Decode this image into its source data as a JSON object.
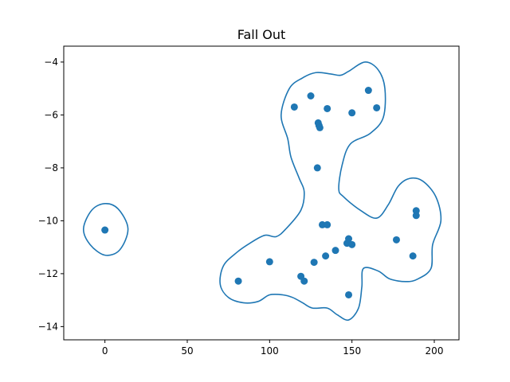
{
  "chart_data": {
    "type": "scatter",
    "title": "Fall Out",
    "xlabel": "",
    "ylabel": "",
    "xlim": [
      -25,
      215
    ],
    "ylim": [
      -14.5,
      -3.4
    ],
    "x_ticks": [
      0,
      50,
      100,
      150,
      200
    ],
    "y_ticks": [
      -4,
      -6,
      -8,
      -10,
      -12,
      -14
    ],
    "x_tick_labels": [
      "0",
      "50",
      "100",
      "150",
      "200"
    ],
    "y_tick_labels": [
      "−4",
      "−6",
      "−8",
      "−10",
      "−12",
      "−14"
    ],
    "grid": false,
    "point_color": "#1f77b4",
    "line_color": "#1f77b4",
    "points": [
      {
        "x": 0,
        "y": -10.35
      },
      {
        "x": 81,
        "y": -12.28
      },
      {
        "x": 100,
        "y": -11.55
      },
      {
        "x": 115,
        "y": -5.7
      },
      {
        "x": 119,
        "y": -12.1
      },
      {
        "x": 121,
        "y": -12.28
      },
      {
        "x": 125,
        "y": -5.28
      },
      {
        "x": 127,
        "y": -11.57
      },
      {
        "x": 129,
        "y": -8.0
      },
      {
        "x": 129.5,
        "y": -6.3
      },
      {
        "x": 130,
        "y": -6.4
      },
      {
        "x": 130.5,
        "y": -6.48
      },
      {
        "x": 132,
        "y": -10.15
      },
      {
        "x": 134,
        "y": -11.33
      },
      {
        "x": 135,
        "y": -10.15
      },
      {
        "x": 135,
        "y": -5.76
      },
      {
        "x": 140,
        "y": -11.12
      },
      {
        "x": 147,
        "y": -10.85
      },
      {
        "x": 148,
        "y": -10.68
      },
      {
        "x": 148,
        "y": -12.8
      },
      {
        "x": 150,
        "y": -10.9
      },
      {
        "x": 150,
        "y": -5.92
      },
      {
        "x": 160,
        "y": -5.07
      },
      {
        "x": 165,
        "y": -5.73
      },
      {
        "x": 177,
        "y": -10.72
      },
      {
        "x": 187,
        "y": -11.33
      },
      {
        "x": 189,
        "y": -9.62
      },
      {
        "x": 189,
        "y": -9.8
      }
    ],
    "contours": [
      [
        [
          0,
          -9.35
        ],
        [
          8,
          -9.55
        ],
        [
          14,
          -10.3
        ],
        [
          9,
          -11.1
        ],
        [
          0,
          -11.3
        ],
        [
          -9,
          -10.9
        ],
        [
          -13,
          -10.3
        ],
        [
          -8,
          -9.6
        ]
      ],
      [
        [
          112,
          -5.0
        ],
        [
          120,
          -4.6
        ],
        [
          128,
          -4.4
        ],
        [
          137,
          -4.45
        ],
        [
          143,
          -4.5
        ],
        [
          148,
          -4.35
        ],
        [
          158,
          -4.0
        ],
        [
          166,
          -4.3
        ],
        [
          170,
          -5.0
        ],
        [
          169,
          -6.1
        ],
        [
          161,
          -6.7
        ],
        [
          149,
          -7.1
        ],
        [
          144,
          -7.9
        ],
        [
          142,
          -8.8
        ],
        [
          145,
          -9.1
        ],
        [
          155,
          -9.6
        ],
        [
          165,
          -9.9
        ],
        [
          172,
          -9.4
        ],
        [
          178,
          -8.7
        ],
        [
          185,
          -8.4
        ],
        [
          193,
          -8.5
        ],
        [
          201,
          -9.1
        ],
        [
          204,
          -10.0
        ],
        [
          199,
          -10.9
        ],
        [
          198,
          -11.8
        ],
        [
          190,
          -12.2
        ],
        [
          183,
          -12.3
        ],
        [
          173,
          -12.2
        ],
        [
          166,
          -11.9
        ],
        [
          157,
          -11.8
        ],
        [
          156,
          -12.5
        ],
        [
          154,
          -13.3
        ],
        [
          148,
          -13.75
        ],
        [
          141,
          -13.55
        ],
        [
          135,
          -13.3
        ],
        [
          126,
          -13.3
        ],
        [
          120,
          -13.1
        ],
        [
          114,
          -12.9
        ],
        [
          108,
          -12.8
        ],
        [
          100,
          -12.8
        ],
        [
          93,
          -13.05
        ],
        [
          84,
          -13.1
        ],
        [
          75,
          -12.9
        ],
        [
          70,
          -12.4
        ],
        [
          72,
          -11.7
        ],
        [
          80,
          -11.2
        ],
        [
          88,
          -10.85
        ],
        [
          97,
          -10.55
        ],
        [
          104,
          -10.6
        ],
        [
          110,
          -10.3
        ],
        [
          119,
          -9.6
        ],
        [
          121,
          -8.9
        ],
        [
          118,
          -8.4
        ],
        [
          113,
          -7.6
        ],
        [
          111,
          -6.9
        ],
        [
          107,
          -6.0
        ]
      ]
    ]
  }
}
